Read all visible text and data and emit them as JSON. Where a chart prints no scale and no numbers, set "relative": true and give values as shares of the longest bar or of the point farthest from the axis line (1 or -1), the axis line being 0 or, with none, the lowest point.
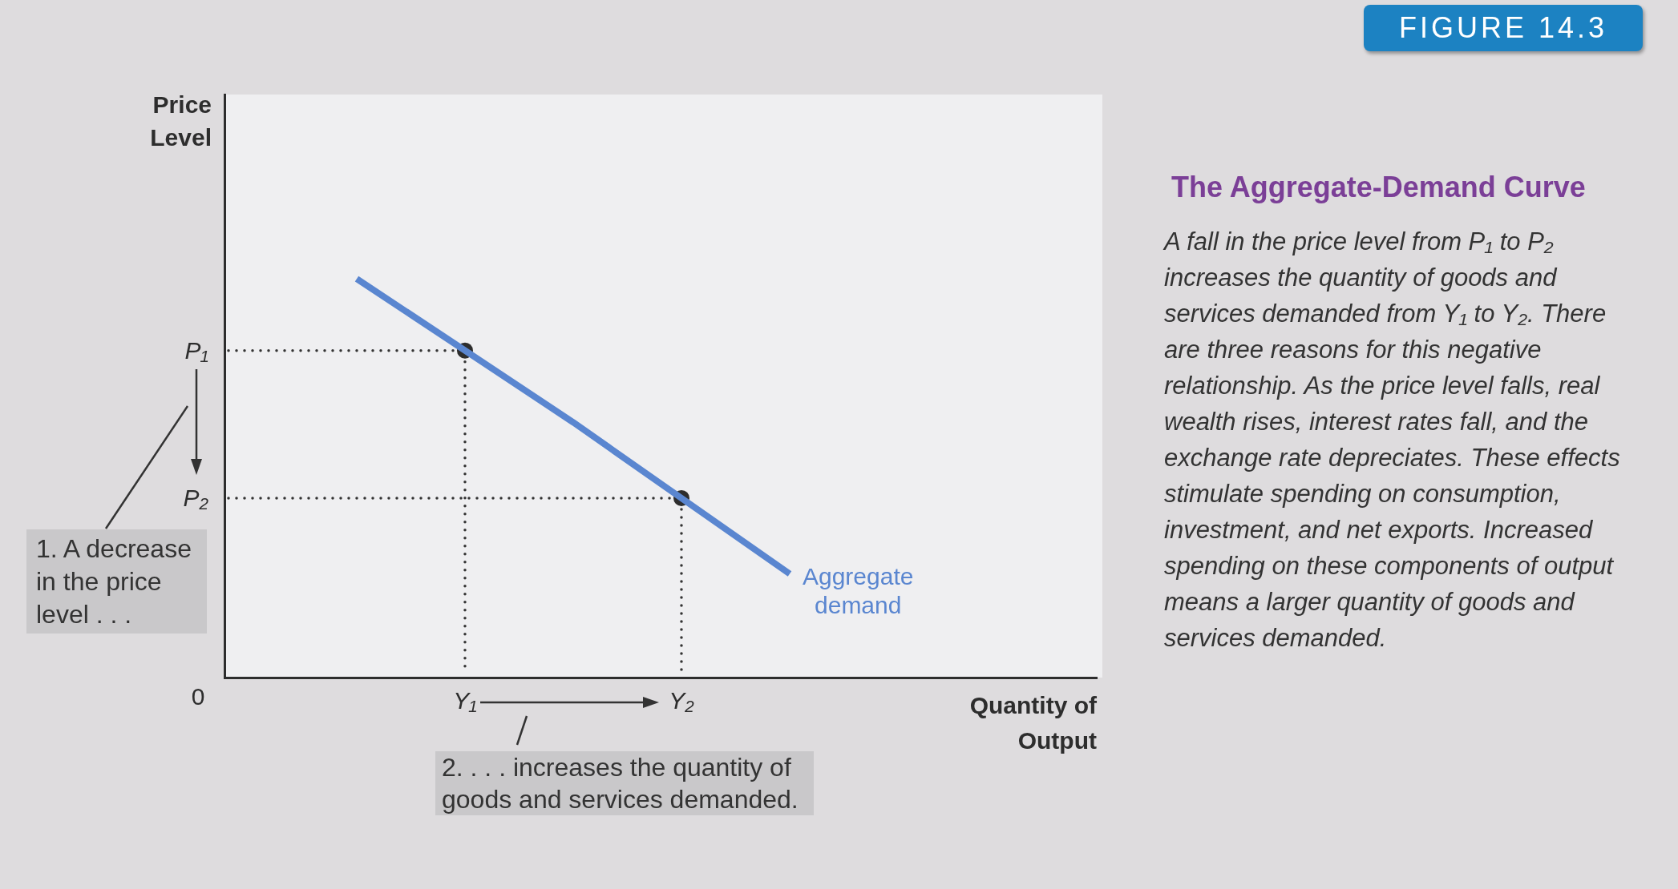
{
  "chart_data": {
    "type": "line",
    "title": "The Aggregate-Demand Curve",
    "relative": true,
    "tick_labels": "x",
    "legend": false,
    "categories": [
      null,
      "Y₁",
      null,
      "Y₂",
      null
    ],
    "series": [
      {
        "name": "Aggregate demand",
        "color": "#5a86d0",
        "marker": "none",
        "values": [
          1,
          0.82,
          0.64,
          0.45,
          0.26
        ]
      },
      {
        "type": "scatter",
        "color": "#2d2d2d",
        "marker": "circle",
        "x": [
          "Y₁",
          "Y₂"
        ],
        "values": [
          0.82,
          0.45
        ]
      }
    ],
    "ref_lines": [
      {
        "axis": "y",
        "value": 0.82,
        "label": "P₁",
        "color": "#333333",
        "line_style": "dotted"
      },
      {
        "axis": "y",
        "value": 0.45,
        "label": "P₂",
        "color": "#333333",
        "line_style": "dotted"
      },
      {
        "axis": "x",
        "value": "Y₁",
        "color": "#333333",
        "line_style": "dotted"
      },
      {
        "axis": "x",
        "value": "Y₂",
        "color": "#333333",
        "line_style": "dotted"
      }
    ],
    "annotations": [
      "FIGURE 14.3",
      "A fall in the price level from P₁ to P₂ increases the quantity of goods and services demanded from Y₁ to Y₂. There are three reasons for this negative relationship. As the price level falls, real wealth rises, interest rates fall, and the exchange rate depreciates. These effects stimulate spending on consumption, investment, and net exports. Increased spending on these components of output means a larger quantity of goods and services demanded.",
      "Price Level",
      "0",
      "Quantity of Output",
      "1. A decrease in the price level . . .",
      "2. . . . increases the quantity of goods and services demanded."
    ]
  }
}
